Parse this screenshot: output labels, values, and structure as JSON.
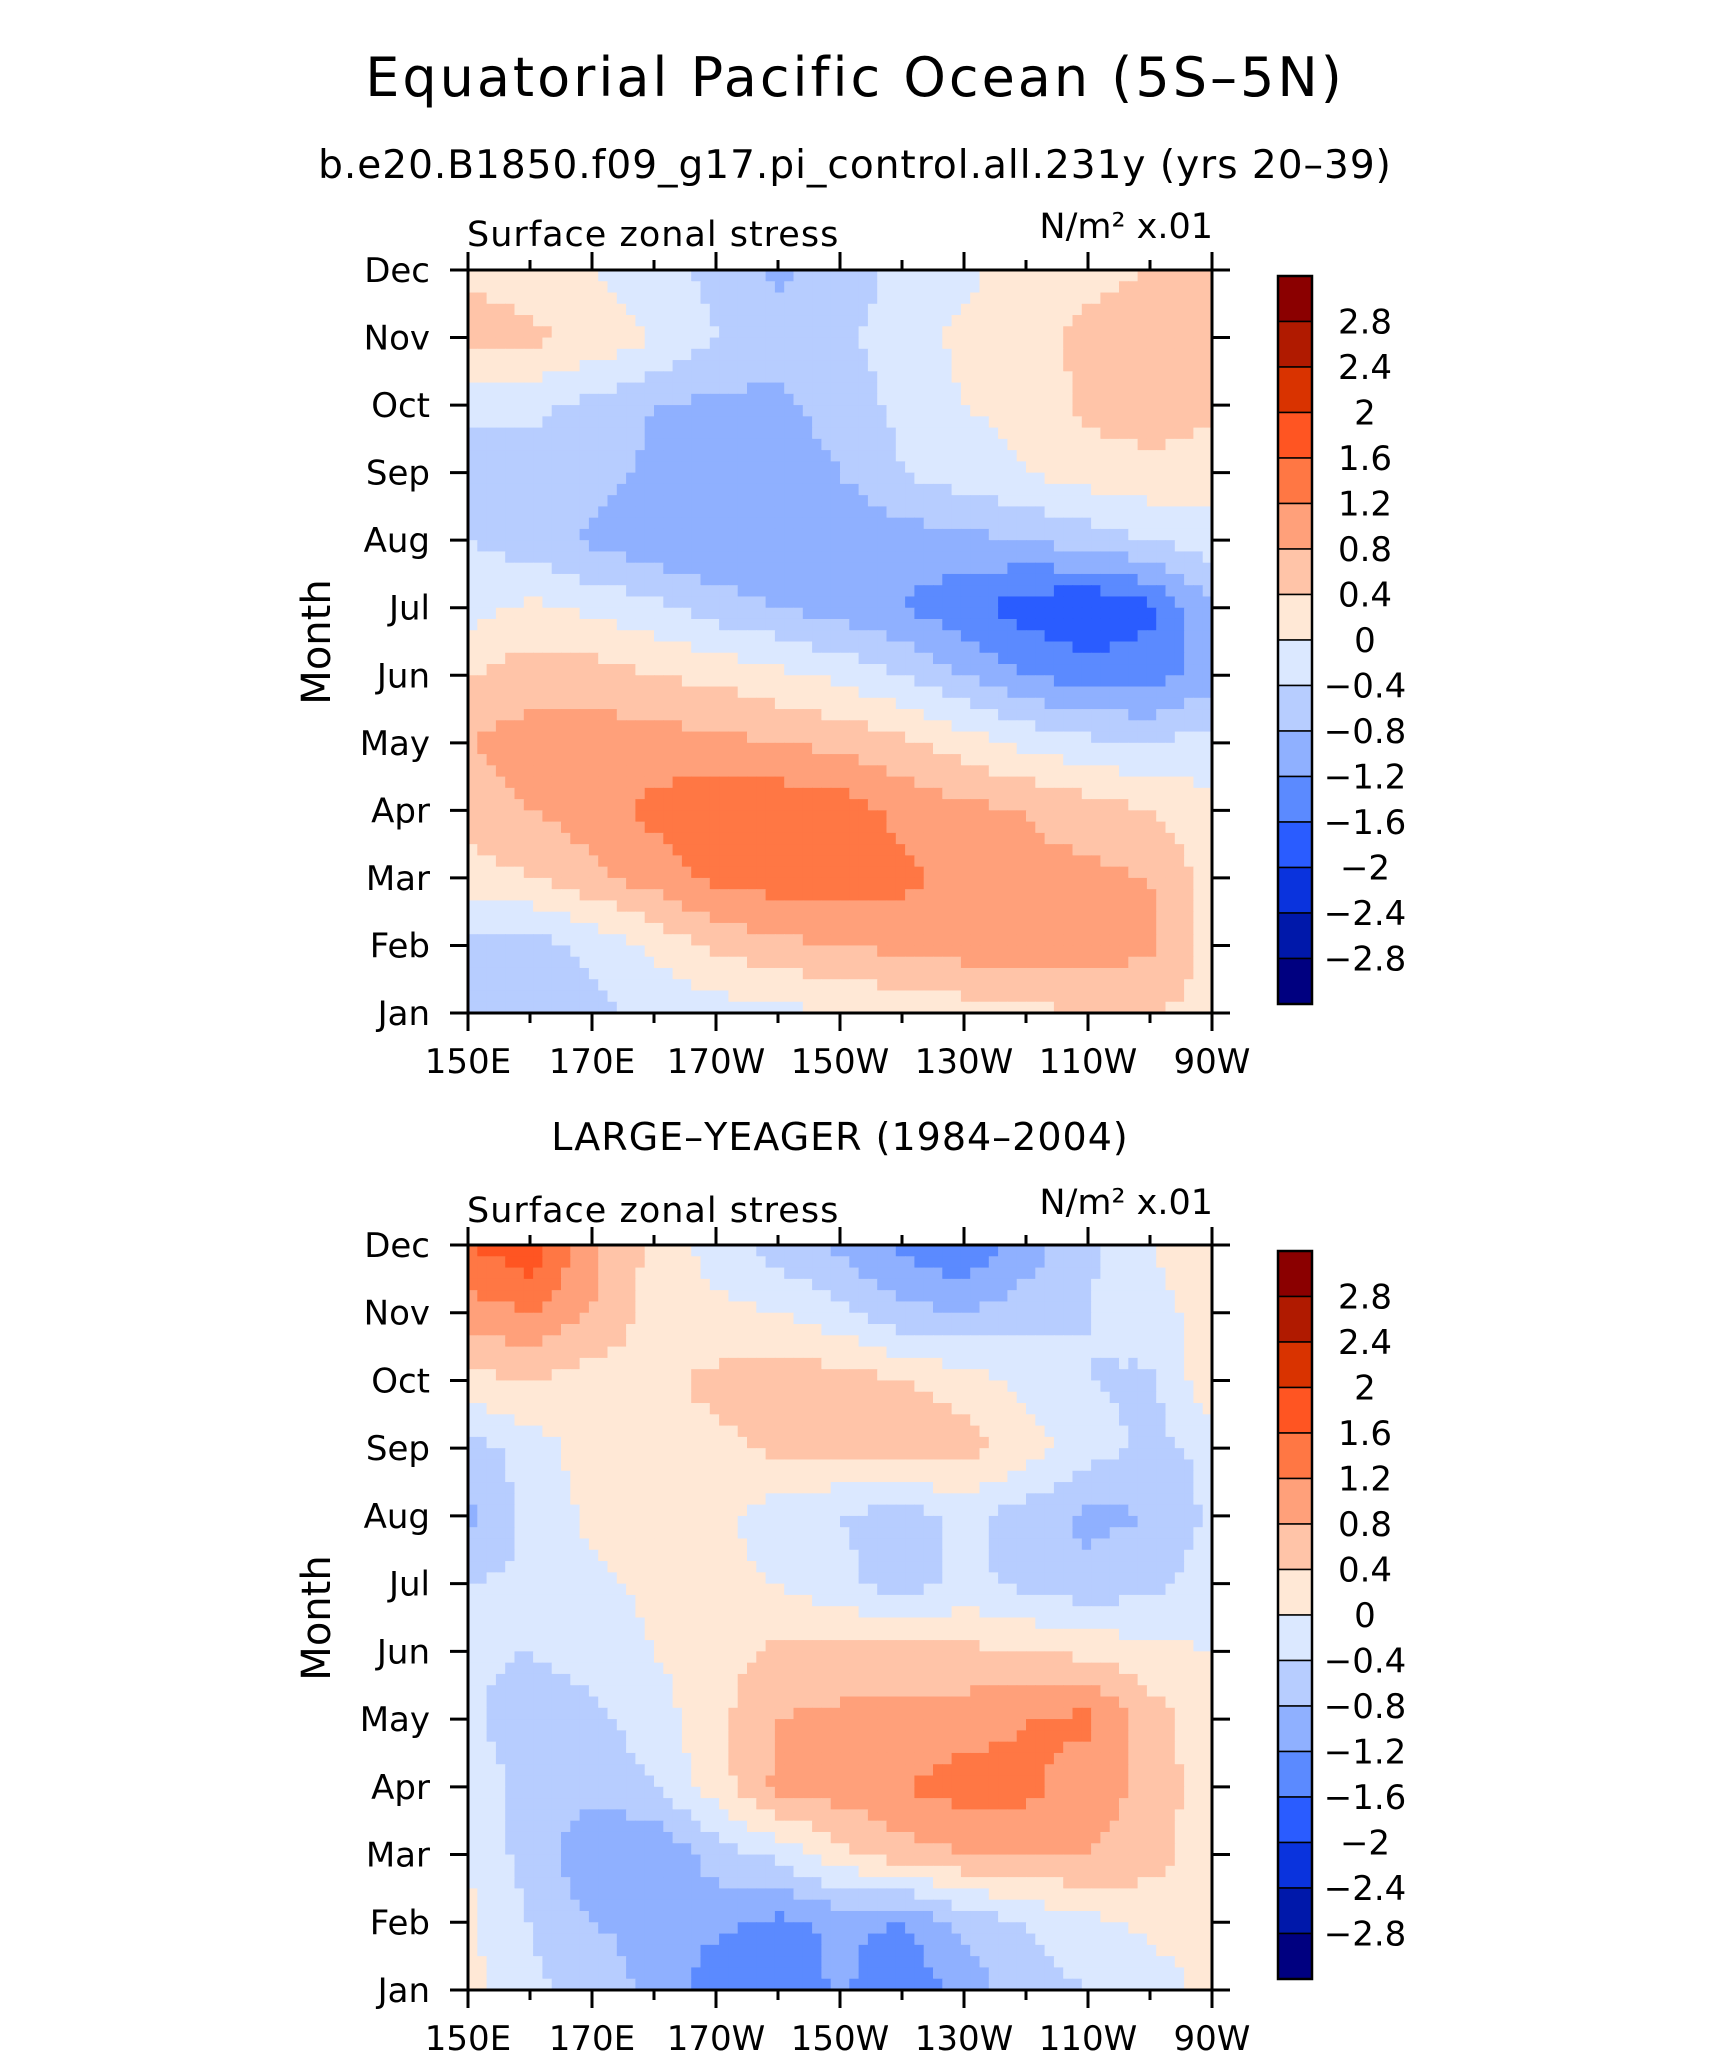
{
  "figure": {
    "title": "Equatorial Pacific Ocean (5S–5N)",
    "subtitle": "b.e20.B1850.f09_g17.pi_control.all.231y (yrs 20–39)"
  },
  "colorbar": {
    "labels": [
      "2.8",
      "2.4",
      "2",
      "1.6",
      "1.2",
      "0.8",
      "0.4",
      "0",
      "−0.4",
      "−0.8",
      "−1.2",
      "−1.6",
      "−2",
      "−2.4",
      "−2.8"
    ],
    "colors": [
      "#8b0000",
      "#b01a00",
      "#d93300",
      "#ff5522",
      "#ff7744",
      "#ffa07a",
      "#ffc4a8",
      "#ffe8d6",
      "#dbe8ff",
      "#b7cdff",
      "#8fb0ff",
      "#5b8aff",
      "#2a5cff",
      "#0a33dd",
      "#0018aa",
      "#000080"
    ]
  },
  "chart_data": [
    {
      "type": "heatmap",
      "title": "",
      "left_label": "Surface zonal stress",
      "right_label": "N/m² x.01",
      "xlabel": "",
      "ylabel": "Month",
      "x_tick_labels": [
        "150E",
        "170E",
        "170W",
        "150W",
        "130W",
        "110W",
        "90W"
      ],
      "x_ticks_lon": [
        150,
        170,
        190,
        210,
        230,
        250,
        270
      ],
      "xlim": [
        150,
        270
      ],
      "y_tick_labels": [
        "Jan",
        "Feb",
        "Mar",
        "Apr",
        "May",
        "Jun",
        "Jul",
        "Aug",
        "Sep",
        "Oct",
        "Nov",
        "Dec"
      ],
      "ylim": [
        1,
        12
      ],
      "contour_levels": [
        -2.8,
        -2.4,
        -2,
        -1.6,
        -1.2,
        -0.8,
        -0.4,
        0,
        0.4,
        0.8,
        1.2,
        1.6,
        2,
        2.4,
        2.8
      ],
      "lon": [
        150,
        160,
        170,
        180,
        190,
        200,
        210,
        220,
        230,
        240,
        250,
        260,
        270
      ],
      "values": [
        [
          -0.6,
          -0.7,
          -0.5,
          -0.3,
          -0.2,
          -0.1,
          0.0,
          0.1,
          0.2,
          0.3,
          0.4,
          0.4,
          0.3
        ],
        [
          -0.5,
          -0.6,
          -0.3,
          0.1,
          0.5,
          0.7,
          0.8,
          0.9,
          1.0,
          1.0,
          1.0,
          0.9,
          0.2
        ],
        [
          0.2,
          0.4,
          0.7,
          1.0,
          1.3,
          1.4,
          1.4,
          1.3,
          1.1,
          0.9,
          0.9,
          0.8,
          0.2
        ],
        [
          0.6,
          0.8,
          1.0,
          1.3,
          1.5,
          1.5,
          1.4,
          1.1,
          0.9,
          0.8,
          0.6,
          0.4,
          0.1
        ],
        [
          0.8,
          1.0,
          1.0,
          1.0,
          0.9,
          0.8,
          0.7,
          0.5,
          0.2,
          -0.1,
          -0.3,
          -0.4,
          -0.2
        ],
        [
          0.4,
          0.6,
          0.6,
          0.4,
          0.3,
          0.1,
          -0.1,
          -0.4,
          -0.8,
          -1.2,
          -1.4,
          -1.4,
          -1.0
        ],
        [
          -0.2,
          0.1,
          -0.1,
          -0.3,
          -0.6,
          -0.8,
          -1.0,
          -1.2,
          -1.5,
          -1.8,
          -2.0,
          -1.7,
          -0.8
        ],
        [
          -0.4,
          -0.6,
          -0.9,
          -1.1,
          -1.2,
          -1.2,
          -1.1,
          -1.0,
          -0.9,
          -0.8,
          -0.6,
          -0.4,
          -0.2
        ],
        [
          -0.7,
          -0.6,
          -0.6,
          -0.9,
          -1.0,
          -1.1,
          -0.8,
          -0.4,
          -0.2,
          0.0,
          0.2,
          0.3,
          0.2
        ],
        [
          -0.2,
          -0.3,
          -0.5,
          -0.8,
          -0.9,
          -0.9,
          -0.6,
          -0.3,
          0.0,
          0.1,
          0.5,
          0.6,
          0.5
        ],
        [
          0.6,
          0.5,
          0.3,
          0.0,
          -0.4,
          -0.6,
          -0.5,
          -0.2,
          0.1,
          0.3,
          0.5,
          0.6,
          0.5
        ],
        [
          0.3,
          0.2,
          0.0,
          -0.3,
          -0.5,
          -0.9,
          -0.6,
          -0.3,
          -0.1,
          0.2,
          0.3,
          0.4,
          0.4
        ]
      ]
    },
    {
      "type": "heatmap",
      "title": "LARGE–YEAGER (1984–2004)",
      "left_label": "Surface zonal stress",
      "right_label": "N/m² x.01",
      "xlabel": "",
      "ylabel": "Month",
      "x_tick_labels": [
        "150E",
        "170E",
        "170W",
        "150W",
        "130W",
        "110W",
        "90W"
      ],
      "x_ticks_lon": [
        150,
        170,
        190,
        210,
        230,
        250,
        270
      ],
      "xlim": [
        150,
        270
      ],
      "y_tick_labels": [
        "Jan",
        "Feb",
        "Mar",
        "Apr",
        "May",
        "Jun",
        "Jul",
        "Aug",
        "Sep",
        "Oct",
        "Nov",
        "Dec"
      ],
      "ylim": [
        1,
        12
      ],
      "contour_levels": [
        -2.8,
        -2.4,
        -2,
        -1.6,
        -1.2,
        -0.8,
        -0.4,
        0,
        0.4,
        0.8,
        1.2,
        1.6,
        2,
        2.4,
        2.8
      ],
      "lon": [
        150,
        160,
        170,
        180,
        190,
        200,
        210,
        220,
        230,
        240,
        250,
        260,
        270
      ],
      "values": [
        [
          0.1,
          -0.3,
          -0.6,
          -0.9,
          -1.5,
          -1.6,
          -1.1,
          -1.6,
          -1.0,
          -0.6,
          -0.4,
          -0.2,
          0.1
        ],
        [
          0.1,
          -0.4,
          -0.8,
          -0.9,
          -1.1,
          -1.3,
          -1.1,
          -1.2,
          -0.7,
          -0.4,
          -0.1,
          0.1,
          0.2
        ],
        [
          0.0,
          -0.6,
          -1.1,
          -1.2,
          -0.6,
          -0.3,
          0.3,
          0.6,
          0.8,
          0.9,
          0.8,
          0.6,
          0.1
        ],
        [
          -0.2,
          -0.5,
          -0.7,
          -0.4,
          0.2,
          0.9,
          1.0,
          1.2,
          1.4,
          1.3,
          1.0,
          0.7,
          0.1
        ],
        [
          -0.3,
          -0.7,
          -0.5,
          -0.2,
          0.3,
          0.8,
          0.9,
          0.9,
          1.0,
          1.2,
          1.3,
          0.6,
          0.1
        ],
        [
          -0.3,
          -0.4,
          -0.2,
          0.0,
          0.2,
          0.5,
          0.5,
          0.6,
          0.5,
          0.4,
          0.3,
          0.1,
          0.0
        ],
        [
          -0.4,
          -0.3,
          -0.1,
          0.1,
          0.1,
          0.0,
          -0.3,
          -0.6,
          -0.3,
          -0.5,
          -0.7,
          -0.5,
          -0.2
        ],
        [
          -0.9,
          -0.3,
          0.1,
          0.2,
          0.1,
          -0.2,
          -0.4,
          -0.6,
          -0.3,
          -0.6,
          -0.9,
          -0.8,
          -0.3
        ],
        [
          -0.6,
          -0.2,
          0.2,
          0.3,
          0.3,
          0.5,
          0.5,
          0.7,
          0.6,
          0.2,
          -0.2,
          -0.5,
          -0.3
        ],
        [
          0.3,
          0.4,
          0.2,
          0.3,
          0.5,
          0.6,
          0.6,
          0.4,
          0.2,
          -0.1,
          -0.4,
          -0.5,
          0.3
        ],
        [
          1.0,
          1.2,
          0.8,
          0.2,
          0.1,
          0.0,
          -0.3,
          -0.7,
          -0.8,
          -0.6,
          -0.4,
          -0.1,
          0.1
        ],
        [
          1.6,
          1.9,
          0.9,
          0.3,
          -0.2,
          -0.6,
          -0.9,
          -1.3,
          -1.6,
          -1.0,
          -0.5,
          0.0,
          0.2
        ]
      ]
    }
  ]
}
